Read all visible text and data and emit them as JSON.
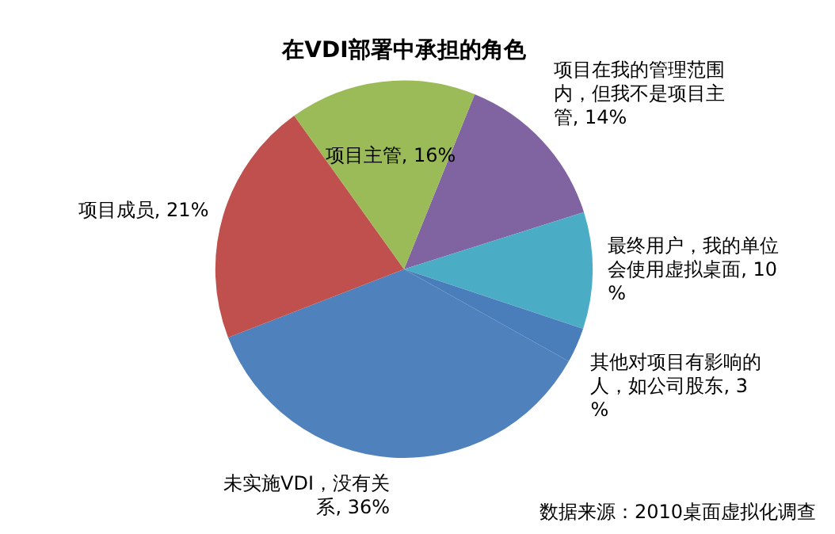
{
  "chart_data": {
    "type": "pie",
    "title": "在VDI部署中承担的角色",
    "categories": [
      "项目在我的管理范围内，但我不是项目主管",
      "最终用户，我的单位会使用虚拟桌面",
      "其他对项目有影响的人，如公司股东",
      "未实施VDI，没有关系",
      "项目成员",
      "项目主管"
    ],
    "values": [
      14,
      10,
      3,
      36,
      21,
      16
    ],
    "colors": [
      "#8064a2",
      "#4bacc6",
      "#4a7ebb",
      "#4f81bd",
      "#c0504d",
      "#9bbb59"
    ],
    "value_labels": [
      "14%",
      "10%",
      "3%",
      "36%",
      "21%",
      "16%"
    ],
    "annotations": [
      "数据来源：2010桌面虚拟化调查"
    ],
    "legend": false
  }
}
